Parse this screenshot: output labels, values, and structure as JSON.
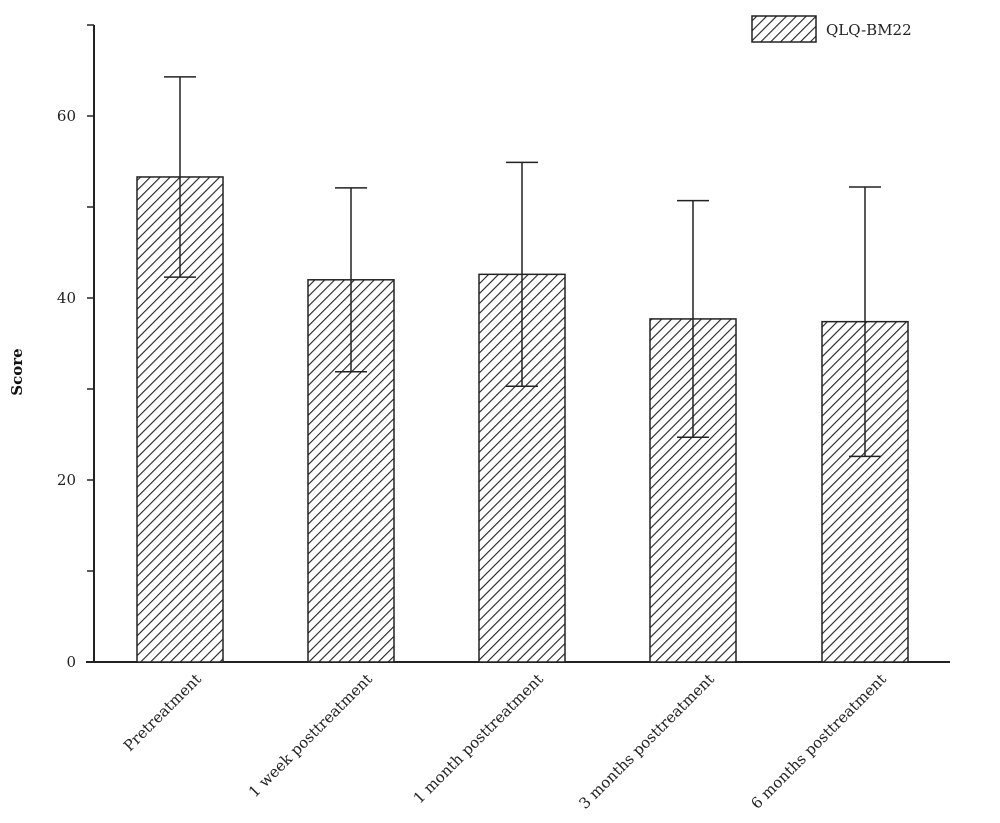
{
  "chart_data": {
    "type": "bar",
    "categories": [
      "Pretreatment",
      "1 week posttreatment",
      "1 month posttreatment",
      "3 months posttreatment",
      "6 months posttreatment"
    ],
    "series": [
      {
        "name": "QLQ-BM22",
        "values": [
          53.3,
          42.0,
          42.6,
          37.7,
          37.4
        ],
        "error": [
          11.0,
          10.1,
          12.3,
          13.0,
          14.8
        ]
      }
    ],
    "ylabel": "Score",
    "xlabel": "",
    "ylim": [
      0,
      70
    ],
    "yticks": [
      0,
      20,
      40,
      60
    ],
    "legend_position": "top-right",
    "pattern": "diagonal-hatch",
    "grid": false
  }
}
